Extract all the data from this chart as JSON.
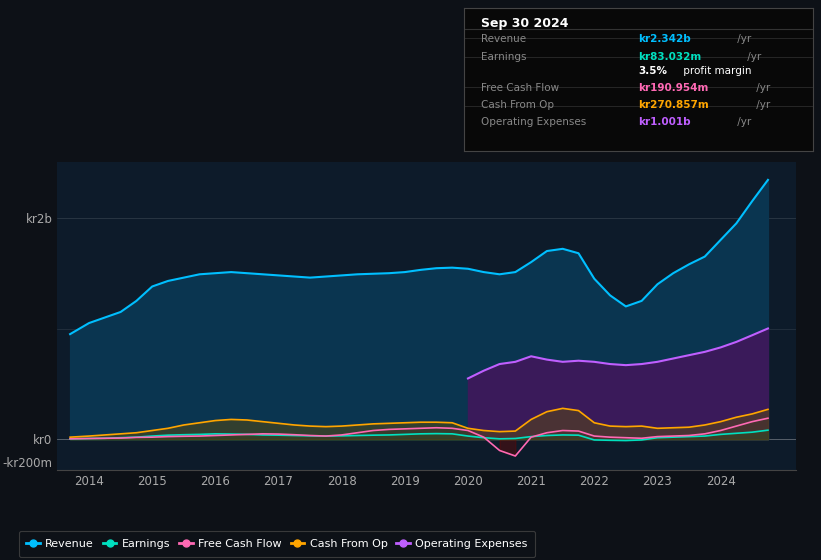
{
  "bg_color": "#0d1117",
  "plot_bg_color": "#0d1b2a",
  "title": "Sep 30 2024",
  "info_box_rows": [
    {
      "label": "Revenue",
      "value": "kr2.342b",
      "suffix": " /yr",
      "color": "#00bfff"
    },
    {
      "label": "Earnings",
      "value": "kr83.032m",
      "suffix": " /yr",
      "color": "#00e0c0"
    },
    {
      "label": "",
      "value": "3.5%",
      "suffix": " profit margin",
      "color": "#ffffff"
    },
    {
      "label": "Free Cash Flow",
      "value": "kr190.954m",
      "suffix": " /yr",
      "color": "#ff69b4"
    },
    {
      "label": "Cash From Op",
      "value": "kr270.857m",
      "suffix": " /yr",
      "color": "#ffa500"
    },
    {
      "label": "Operating Expenses",
      "value": "kr1.001b",
      "suffix": " /yr",
      "color": "#bf5fff"
    }
  ],
  "ylabel_top": "kr2b",
  "ylabel_zero": "kr0",
  "ylabel_bottom": "-kr200m",
  "x_years": [
    2013.7,
    2014.0,
    2014.25,
    2014.5,
    2014.75,
    2015.0,
    2015.25,
    2015.5,
    2015.75,
    2016.0,
    2016.25,
    2016.5,
    2016.75,
    2017.0,
    2017.25,
    2017.5,
    2017.75,
    2018.0,
    2018.25,
    2018.5,
    2018.75,
    2019.0,
    2019.25,
    2019.5,
    2019.75,
    2020.0,
    2020.25,
    2020.5,
    2020.75,
    2021.0,
    2021.25,
    2021.5,
    2021.75,
    2022.0,
    2022.25,
    2022.5,
    2022.75,
    2023.0,
    2023.25,
    2023.5,
    2023.75,
    2024.0,
    2024.25,
    2024.5,
    2024.75
  ],
  "revenue": [
    950,
    1050,
    1100,
    1150,
    1250,
    1380,
    1430,
    1460,
    1490,
    1500,
    1510,
    1500,
    1490,
    1480,
    1470,
    1460,
    1470,
    1480,
    1490,
    1495,
    1500,
    1510,
    1530,
    1545,
    1550,
    1540,
    1510,
    1490,
    1510,
    1600,
    1700,
    1720,
    1680,
    1450,
    1300,
    1200,
    1250,
    1400,
    1500,
    1580,
    1650,
    1800,
    1950,
    2150,
    2342
  ],
  "earnings": [
    5,
    8,
    10,
    15,
    20,
    30,
    38,
    42,
    45,
    50,
    48,
    45,
    40,
    38,
    35,
    32,
    30,
    32,
    35,
    38,
    40,
    45,
    50,
    52,
    50,
    30,
    15,
    5,
    8,
    25,
    35,
    40,
    38,
    -5,
    -8,
    -10,
    -5,
    15,
    20,
    25,
    30,
    45,
    55,
    65,
    83
  ],
  "free_cash_flow": [
    5,
    8,
    10,
    12,
    18,
    20,
    25,
    28,
    30,
    35,
    40,
    45,
    50,
    48,
    42,
    35,
    30,
    40,
    60,
    80,
    90,
    95,
    100,
    105,
    100,
    80,
    20,
    -100,
    -150,
    20,
    60,
    80,
    75,
    30,
    20,
    15,
    10,
    25,
    30,
    35,
    50,
    80,
    120,
    160,
    191
  ],
  "cash_from_op": [
    20,
    30,
    40,
    50,
    60,
    80,
    100,
    130,
    150,
    170,
    180,
    175,
    160,
    145,
    130,
    120,
    115,
    120,
    130,
    140,
    145,
    150,
    155,
    155,
    150,
    100,
    80,
    70,
    75,
    180,
    250,
    280,
    260,
    150,
    120,
    115,
    120,
    100,
    105,
    110,
    130,
    160,
    200,
    230,
    271
  ],
  "operating_expenses": [
    0,
    0,
    0,
    0,
    0,
    0,
    0,
    0,
    0,
    0,
    0,
    0,
    0,
    0,
    0,
    0,
    0,
    0,
    0,
    0,
    0,
    0,
    0,
    0,
    0,
    550,
    620,
    680,
    700,
    750,
    720,
    700,
    710,
    700,
    680,
    670,
    680,
    700,
    730,
    760,
    790,
    830,
    880,
    940,
    1001
  ],
  "revenue_color": "#00bfff",
  "earnings_color": "#00e0c0",
  "fcf_color": "#ff69b4",
  "cfo_color": "#ffa500",
  "opex_color": "#bf5fff",
  "revenue_fill": "#0a3550",
  "earnings_fill": "#0a4a3c",
  "opex_fill": "#3a1a5a",
  "cfo_fill": "#5a4a10",
  "fcf_neg_fill": "#5a0a0a",
  "ylim_min": -280,
  "ylim_max": 2500,
  "xlim_min": 2013.5,
  "xlim_max": 2025.2,
  "x_tick_years": [
    2014,
    2015,
    2016,
    2017,
    2018,
    2019,
    2020,
    2021,
    2022,
    2023,
    2024
  ],
  "legend_items": [
    {
      "label": "Revenue",
      "color": "#00bfff"
    },
    {
      "label": "Earnings",
      "color": "#00e0c0"
    },
    {
      "label": "Free Cash Flow",
      "color": "#ff69b4"
    },
    {
      "label": "Cash From Op",
      "color": "#ffa500"
    },
    {
      "label": "Operating Expenses",
      "color": "#bf5fff"
    }
  ]
}
